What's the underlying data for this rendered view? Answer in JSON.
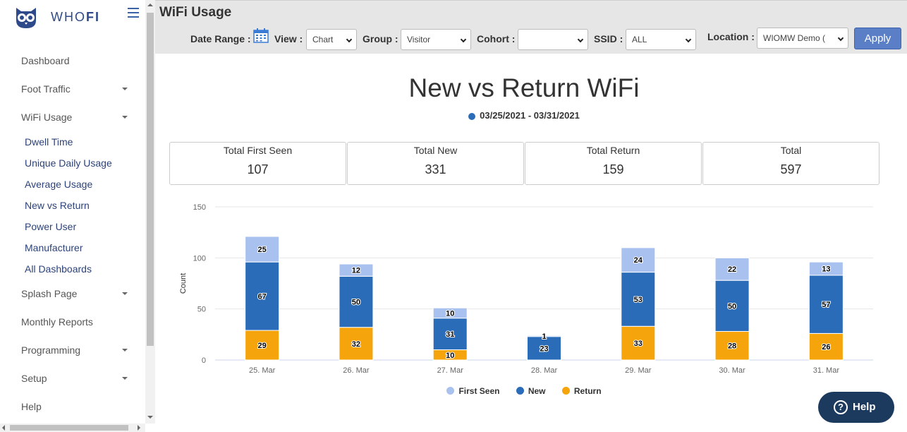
{
  "brand": {
    "name_light": "WHO",
    "name_bold": "FI"
  },
  "sidebar": {
    "items": [
      {
        "label": "Dashboard",
        "has_caret": false
      },
      {
        "label": "Foot Traffic",
        "has_caret": true
      },
      {
        "label": "WiFi Usage",
        "has_caret": true
      },
      {
        "label": "Splash Page",
        "has_caret": true
      },
      {
        "label": "Monthly Reports",
        "has_caret": false
      },
      {
        "label": "Programming",
        "has_caret": true
      },
      {
        "label": "Setup",
        "has_caret": true
      },
      {
        "label": "Help",
        "has_caret": false
      }
    ],
    "subitems": [
      {
        "label": "Dwell Time"
      },
      {
        "label": "Unique Daily Usage"
      },
      {
        "label": "Average Usage"
      },
      {
        "label": "New vs Return"
      },
      {
        "label": "Power User"
      },
      {
        "label": "Manufacturer"
      },
      {
        "label": "All Dashboards"
      }
    ]
  },
  "header": {
    "title": "WiFi Usage",
    "filters": {
      "date_range_label": "Date Range :",
      "view_label": "View :",
      "view_value": "Chart",
      "group_label": "Group :",
      "group_value": "Visitor",
      "cohort_label": "Cohort :",
      "cohort_value": "",
      "ssid_label": "SSID :",
      "ssid_value": "ALL",
      "location_label": "Location :",
      "location_value": "WIOMW Demo ("
    },
    "apply_label": "Apply"
  },
  "summary_cards": [
    {
      "label": "Total First Seen",
      "value": "107"
    },
    {
      "label": "Total New",
      "value": "331"
    },
    {
      "label": "Total Return",
      "value": "159"
    },
    {
      "label": "Total",
      "value": "597"
    }
  ],
  "chart_data": {
    "type": "bar",
    "stacked": true,
    "title": "New vs Return WiFi",
    "subtitle": "03/25/2021 - 03/31/2021",
    "subtitle_dot_color": "#2b6cb9",
    "ylabel": "Count",
    "ylim": [
      0,
      150
    ],
    "yticks": [
      0,
      50,
      100,
      150
    ],
    "categories": [
      "25. Mar",
      "26. Mar",
      "27. Mar",
      "28. Mar",
      "29. Mar",
      "30. Mar",
      "31. Mar"
    ],
    "series": [
      {
        "name": "Return",
        "color": "#f5a40c",
        "values": [
          29,
          32,
          10,
          0,
          33,
          28,
          26
        ]
      },
      {
        "name": "New",
        "color": "#2b6cb9",
        "values": [
          67,
          50,
          31,
          23,
          53,
          50,
          57
        ]
      },
      {
        "name": "First Seen",
        "color": "#a9c1ef",
        "values": [
          25,
          12,
          10,
          1,
          24,
          22,
          13
        ]
      }
    ],
    "legend": [
      "First Seen",
      "New",
      "Return"
    ],
    "legend_position": "bottom",
    "grid": true
  },
  "help_button": {
    "label": "Help"
  }
}
